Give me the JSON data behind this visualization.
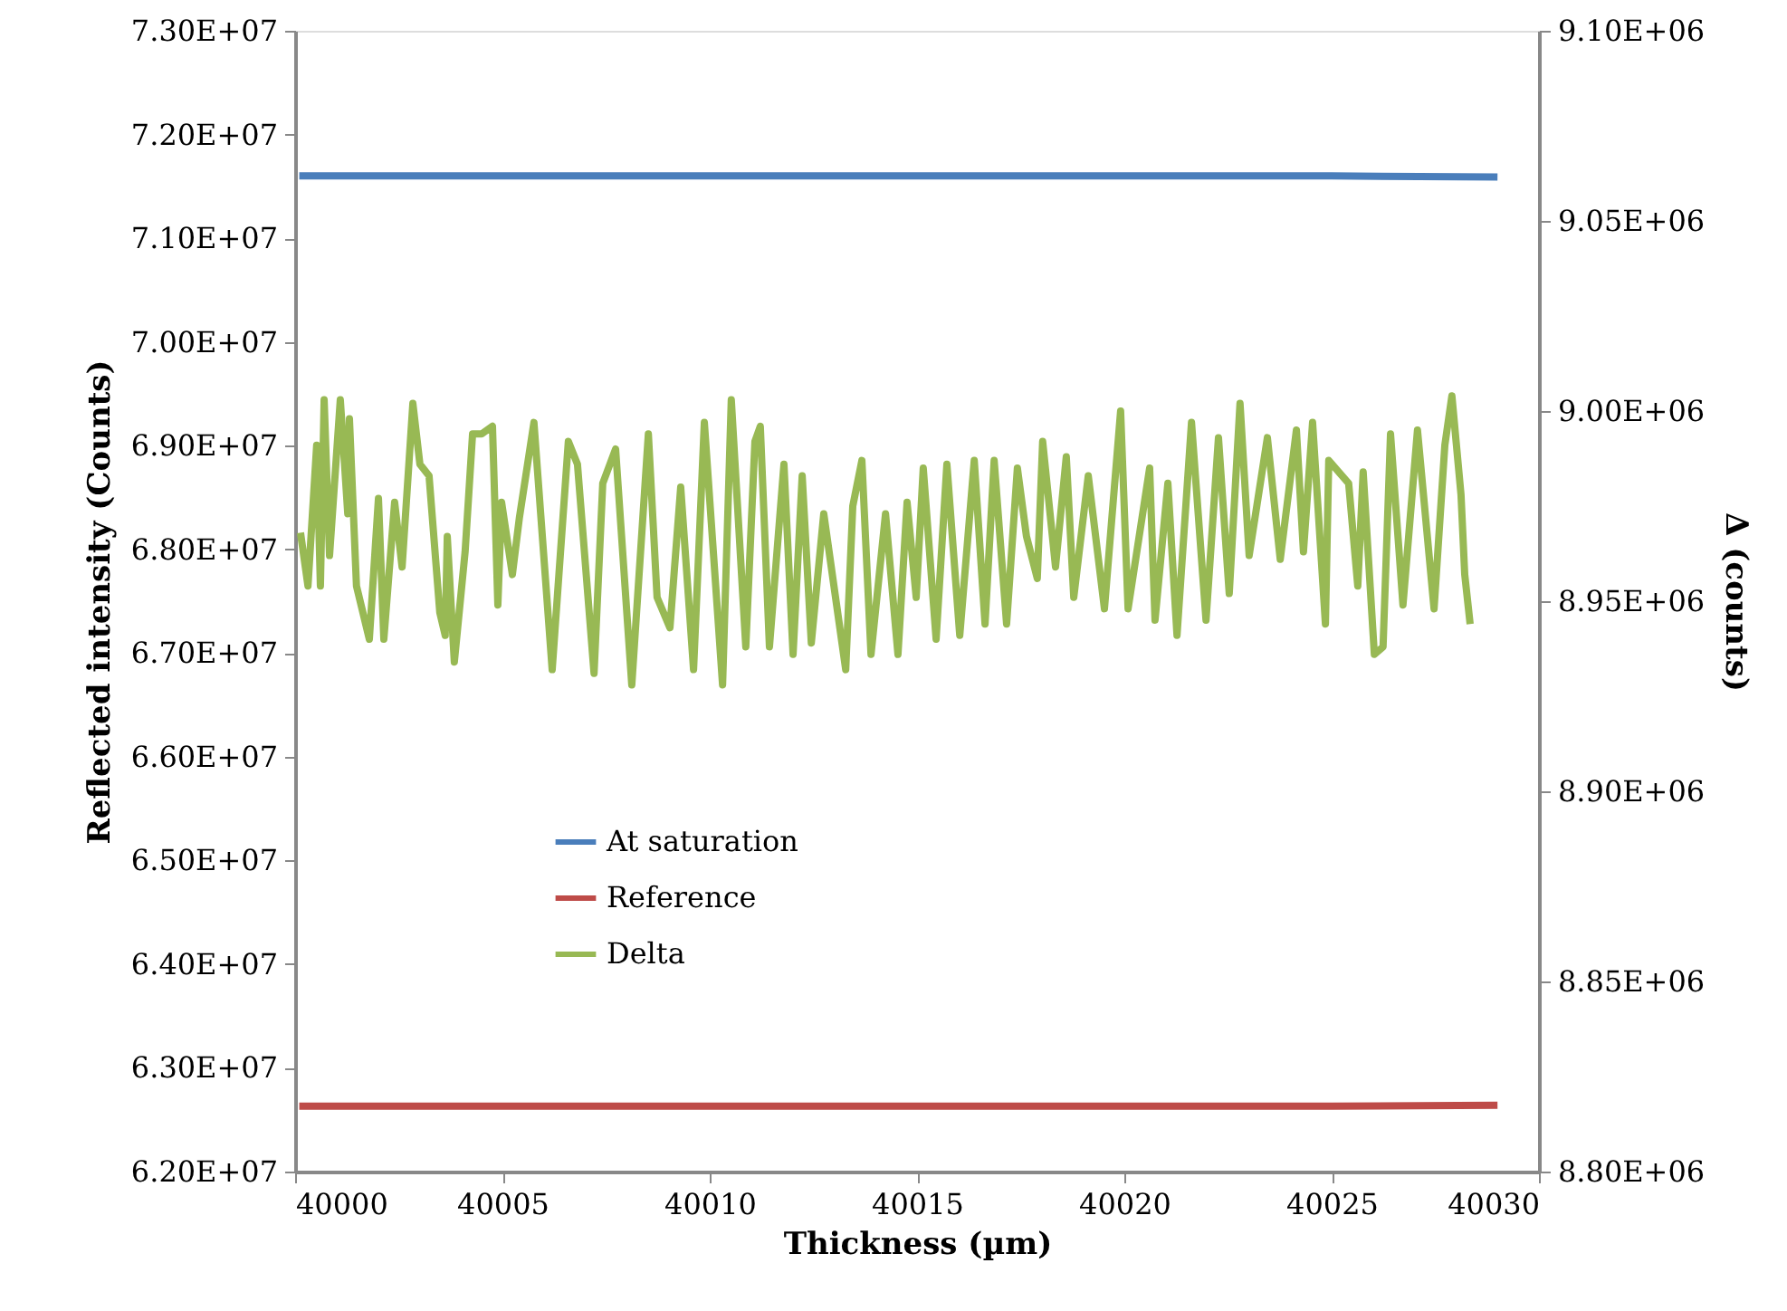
{
  "chart_data": {
    "type": "line",
    "xlabel": "Thickness (µm)",
    "ylabel": "Reflected intensity (Counts)",
    "y2label": "Δ (counts)",
    "xlim": [
      40000,
      40030
    ],
    "xticks": [
      40000,
      40005,
      40010,
      40015,
      40020,
      40025,
      40030
    ],
    "ylim": [
      62000000,
      73000000
    ],
    "yticks": [
      {
        "value": 62000000,
        "label": "6.20E+07"
      },
      {
        "value": 63000000,
        "label": "6.30E+07"
      },
      {
        "value": 64000000,
        "label": "6.40E+07"
      },
      {
        "value": 65000000,
        "label": "6.50E+07"
      },
      {
        "value": 66000000,
        "label": "6.60E+07"
      },
      {
        "value": 67000000,
        "label": "6.70E+07"
      },
      {
        "value": 68000000,
        "label": "6.80E+07"
      },
      {
        "value": 69000000,
        "label": "6.90E+07"
      },
      {
        "value": 70000000,
        "label": "7.00E+07"
      },
      {
        "value": 71000000,
        "label": "7.10E+07"
      },
      {
        "value": 72000000,
        "label": "7.20E+07"
      },
      {
        "value": 73000000,
        "label": "7.30E+07"
      }
    ],
    "y2lim": [
      8800000,
      9100000
    ],
    "y2ticks": [
      {
        "value": 8800000,
        "label": "8.80E+06"
      },
      {
        "value": 8850000,
        "label": "8.85E+06"
      },
      {
        "value": 8900000,
        "label": "8.90E+06"
      },
      {
        "value": 8950000,
        "label": "8.95E+06"
      },
      {
        "value": 9000000,
        "label": "9.00E+06"
      },
      {
        "value": 9050000,
        "label": "9.05E+06"
      },
      {
        "value": 9100000,
        "label": "9.10E+06"
      }
    ],
    "grid": false,
    "legend": "left",
    "marker": "none",
    "line_style": "solid",
    "series": [
      {
        "name": "At saturation",
        "color": "#4a7ebb",
        "x": [
          40000.1,
          40005,
          40010,
          40015,
          40020,
          40025,
          40029
        ],
        "values": [
          71600000,
          71600000,
          71600000,
          71600000,
          71600000,
          71600000,
          71590000
        ]
      },
      {
        "name": "Reference",
        "color": "#be4b48",
        "x": [
          40000.1,
          40005,
          40010,
          40015,
          40020,
          40025,
          40029
        ],
        "values": [
          62630000,
          62630000,
          62630000,
          62630000,
          62630000,
          62630000,
          62640000
        ]
      },
      {
        "name": "Delta",
        "color": "#98b954",
        "axis": "y2",
        "x": [
          40000.13,
          40000.31,
          40000.52,
          40000.61,
          40000.7,
          40000.83,
          40001.09,
          40001.27,
          40001.31,
          40001.48,
          40001.79,
          40002.01,
          40002.14,
          40002.4,
          40002.58,
          40002.84,
          40003.01,
          40003.23,
          40003.49,
          40003.62,
          40003.67,
          40003.84,
          40004.1,
          40004.28,
          40004.5,
          40004.76,
          40004.89,
          40004.98,
          40005.24,
          40005.41,
          40005.76,
          40006.2,
          40006.59,
          40006.81,
          40007.21,
          40007.42,
          40007.73,
          40008.12,
          40008.52,
          40008.73,
          40009.04,
          40009.3,
          40009.61,
          40009.87,
          40010.31,
          40010.52,
          40010.87,
          40011.09,
          40011.22,
          40011.44,
          40011.79,
          40012.01,
          40012.23,
          40012.45,
          40012.75,
          40013.28,
          40013.45,
          40013.67,
          40013.89,
          40014.24,
          40014.54,
          40014.76,
          40014.98,
          40015.15,
          40015.46,
          40015.72,
          40016.03,
          40016.38,
          40016.64,
          40016.86,
          40017.16,
          40017.42,
          40017.64,
          40017.9,
          40018.03,
          40018.34,
          40018.6,
          40018.78,
          40019.13,
          40019.52,
          40019.91,
          40020.09,
          40020.61,
          40020.74,
          40021.05,
          40021.27,
          40021.62,
          40021.97,
          40022.27,
          40022.53,
          40022.79,
          40023.01,
          40023.45,
          40023.76,
          40024.15,
          40024.32,
          40024.54,
          40024.85,
          40024.93,
          40025.41,
          40025.63,
          40025.76,
          40026.03,
          40026.24,
          40026.42,
          40026.72,
          40027.07,
          40027.47,
          40027.73,
          40027.9,
          40028.12,
          40028.21,
          40028.34
        ],
        "values": [
          8968000,
          8954000,
          8991000,
          8954000,
          9003000,
          8962000,
          9003000,
          8973000,
          8998000,
          8954000,
          8940000,
          8977000,
          8940000,
          8976000,
          8959000,
          9002000,
          8986000,
          8983000,
          8947000,
          8941000,
          8967000,
          8934000,
          8963000,
          8994000,
          8994000,
          8996000,
          8949000,
          8976000,
          8957000,
          8972000,
          8997000,
          8932000,
          8992000,
          8986000,
          8931000,
          8981000,
          8990000,
          8928000,
          8994000,
          8951000,
          8943000,
          8980000,
          8932000,
          8997000,
          8928000,
          9003000,
          8938000,
          8992000,
          8996000,
          8938000,
          8986000,
          8936000,
          8983000,
          8939000,
          8973000,
          8932000,
          8975000,
          8987000,
          8936000,
          8973000,
          8936000,
          8976000,
          8951000,
          8985000,
          8940000,
          8986000,
          8941000,
          8987000,
          8944000,
          8987000,
          8944000,
          8985000,
          8967000,
          8956000,
          8992000,
          8959000,
          8988000,
          8951000,
          8983000,
          8948000,
          9000000,
          8948000,
          8985000,
          8945000,
          8981000,
          8941000,
          8997000,
          8945000,
          8993000,
          8952000,
          9002000,
          8962000,
          8993000,
          8961000,
          8995000,
          8963000,
          8997000,
          8944000,
          8987000,
          8981000,
          8954000,
          8984000,
          8936000,
          8938000,
          8994000,
          8949000,
          8995000,
          8948000,
          8991000,
          9004000,
          8978000,
          8957000,
          8944000
        ]
      }
    ]
  }
}
